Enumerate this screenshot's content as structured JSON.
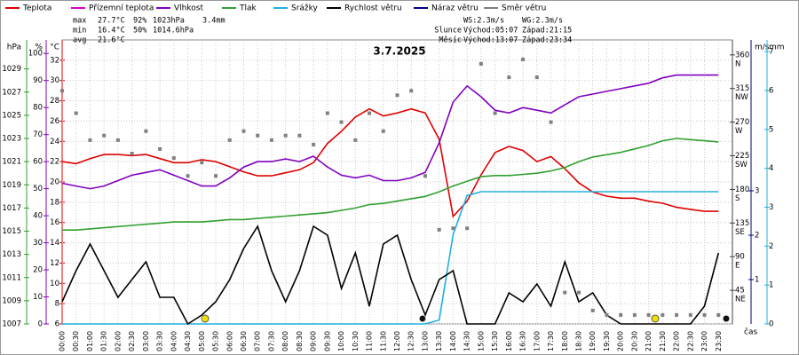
{
  "chart_data": {
    "type": "line",
    "title": "3.7.2025",
    "x": [
      "00:00",
      "00:30",
      "01:00",
      "01:30",
      "02:00",
      "02:30",
      "03:00",
      "03:30",
      "04:00",
      "04:30",
      "05:00",
      "05:30",
      "06:00",
      "06:30",
      "07:00",
      "07:30",
      "08:00",
      "08:30",
      "09:00",
      "09:30",
      "10:00",
      "10:30",
      "11:00",
      "11:30",
      "12:00",
      "12:30",
      "13:00",
      "13:30",
      "14:00",
      "14:30",
      "15:00",
      "15:30",
      "16:00",
      "16:30",
      "17:00",
      "17:30",
      "18:00",
      "18:30",
      "19:00",
      "19:30",
      "20:00",
      "20:30",
      "21:00",
      "21:30",
      "22:00",
      "22:30",
      "23:00",
      "23:30"
    ],
    "x_title": "čas",
    "ylim": [
      6,
      34
    ],
    "yticks": [
      6,
      8,
      10,
      12,
      14,
      16,
      18,
      20,
      22,
      24,
      26,
      28,
      30,
      32
    ],
    "y2lim": [
      0,
      105
    ],
    "y2ticks": [
      0,
      10,
      20,
      30,
      40,
      50,
      60,
      70,
      80,
      90,
      100
    ],
    "y3lim": [
      1007,
      1031.5
    ],
    "y3ticks": [
      1007,
      1009,
      1011,
      1013,
      1015,
      1017,
      1019,
      1021,
      1023,
      1025,
      1027,
      1029
    ],
    "y4lim": [
      0,
      380
    ],
    "y4ticks": [
      45,
      90,
      135,
      180,
      225,
      270,
      315,
      360
    ],
    "y4tick_names": [
      "NE",
      "E",
      "SE",
      "S",
      "SW",
      "W",
      "NW",
      "N"
    ],
    "y5lim": [
      0,
      6.4
    ],
    "y5ticks": [
      1,
      2,
      3
    ],
    "y6lim": [
      0,
      7.3
    ],
    "y6ticks": [
      0,
      1,
      2,
      3,
      4,
      5,
      6,
      7
    ],
    "axis_titles": {
      "y3": "hPa",
      "y2": "%",
      "y": "°C",
      "y5": "m/s",
      "y6": "mm"
    },
    "axis_colors": {
      "y3": "#30a030",
      "y2": "#8000c0",
      "y": "#e00000",
      "y4": "#404040",
      "y5": "#000080",
      "y6": "#20b0e0"
    },
    "grid": true,
    "series": [
      {
        "name": "Teplota",
        "color": "#e00000",
        "axis": "y",
        "values": [
          22.0,
          21.8,
          22.3,
          22.7,
          22.7,
          22.6,
          22.7,
          22.3,
          21.9,
          21.9,
          22.2,
          22.0,
          21.5,
          21.0,
          20.6,
          20.6,
          20.9,
          21.2,
          21.9,
          23.8,
          25.0,
          26.4,
          27.2,
          26.5,
          26.8,
          27.2,
          26.8,
          24.2,
          16.6,
          18.1,
          20.7,
          22.9,
          23.5,
          23.1,
          22.0,
          22.5,
          21.3,
          19.9,
          19.0,
          18.6,
          18.4,
          18.4,
          18.1,
          17.9,
          17.5,
          17.3,
          17.1,
          17.1
        ]
      },
      {
        "name": "Přízemní teplota",
        "color": "#d000d0",
        "axis": "y",
        "values": [
          null,
          null,
          null,
          null,
          null,
          null,
          null,
          null,
          null,
          null,
          null,
          null,
          null,
          null,
          null,
          null,
          null,
          null,
          null,
          null,
          null,
          null,
          null,
          null,
          null,
          null,
          null,
          null,
          null,
          null,
          null,
          null,
          null,
          null,
          null,
          null,
          null,
          null,
          null,
          null,
          null,
          null,
          null,
          null,
          null,
          null,
          null,
          null
        ]
      },
      {
        "name": "Vlhkost",
        "color": "#8000c0",
        "axis": "y2",
        "values": [
          52,
          51,
          50,
          51,
          53,
          55,
          56,
          57,
          55,
          53,
          51,
          51,
          54,
          58,
          60,
          60,
          61,
          60,
          62,
          58,
          55,
          54,
          55,
          53,
          53,
          54,
          56,
          67,
          82,
          88,
          84,
          79,
          78,
          80,
          79,
          78,
          81,
          84,
          85,
          86,
          87,
          88,
          89,
          91,
          92,
          92,
          92,
          92
        ]
      },
      {
        "name": "Tlak",
        "color": "#30a030",
        "axis": "y3",
        "values": [
          1015.1,
          1015.1,
          1015.2,
          1015.3,
          1015.4,
          1015.5,
          1015.6,
          1015.7,
          1015.8,
          1015.8,
          1015.8,
          1015.9,
          1016.0,
          1016.0,
          1016.1,
          1016.2,
          1016.3,
          1016.4,
          1016.5,
          1016.6,
          1016.8,
          1017.0,
          1017.3,
          1017.4,
          1017.6,
          1017.8,
          1018.0,
          1018.4,
          1018.9,
          1019.3,
          1019.7,
          1019.8,
          1019.8,
          1019.9,
          1020.0,
          1020.2,
          1020.5,
          1021.0,
          1021.4,
          1021.6,
          1021.8,
          1022.1,
          1022.4,
          1022.8,
          1023.0,
          1022.9,
          1022.8,
          1022.7
        ]
      },
      {
        "name": "Srážky",
        "color": "#20b0e0",
        "axis": "y6",
        "values": [
          0,
          0,
          0,
          0,
          0,
          0,
          0,
          0,
          0,
          0,
          0,
          0,
          0,
          0,
          0,
          0,
          0,
          0,
          0,
          0,
          0,
          0,
          0,
          0,
          0,
          0,
          0,
          0.1,
          2.3,
          3.3,
          3.4,
          3.4,
          3.4,
          3.4,
          3.4,
          3.4,
          3.4,
          3.4,
          3.4,
          3.4,
          3.4,
          3.4,
          3.4,
          3.4,
          3.4,
          3.4,
          3.4,
          3.4
        ]
      },
      {
        "name": "Rychlost větru",
        "color": "#000000",
        "axis": "y5",
        "values": [
          0.5,
          1.2,
          1.8,
          1.2,
          0.6,
          1.0,
          1.4,
          0.6,
          0.6,
          0,
          0.2,
          0.5,
          1.0,
          1.7,
          2.2,
          1.2,
          0.5,
          1.2,
          2.2,
          2.0,
          0.8,
          1.6,
          0.4,
          1.8,
          2.0,
          1.0,
          0.2,
          1.0,
          1.2,
          0,
          0,
          0,
          0.7,
          0.5,
          0.9,
          0.4,
          1.4,
          0.5,
          0.7,
          0.2,
          0,
          0,
          0,
          0,
          0,
          0,
          0.4,
          1.6
        ]
      },
      {
        "name": "Náraz větru",
        "color": "#000080",
        "axis": "y5",
        "values": [
          null,
          null,
          null,
          null,
          null,
          null,
          null,
          null,
          null,
          null,
          null,
          null,
          null,
          null,
          null,
          null,
          null,
          null,
          null,
          null,
          null,
          null,
          null,
          null,
          null,
          null,
          null,
          null,
          null,
          null,
          null,
          null,
          null,
          null,
          null,
          null,
          null,
          null,
          null,
          null,
          null,
          null,
          null,
          null,
          null,
          null,
          null,
          null
        ]
      },
      {
        "name": "Směr větru",
        "color": "#808080",
        "axis": "y4",
        "style": "points",
        "values": [
          312,
          282,
          246,
          252,
          246,
          228,
          258,
          234,
          222,
          198,
          216,
          198,
          246,
          258,
          252,
          246,
          252,
          252,
          240,
          282,
          270,
          246,
          282,
          258,
          306,
          312,
          198,
          126,
          128,
          128,
          348,
          282,
          330,
          354,
          330,
          270,
          42,
          42,
          18,
          12,
          12,
          12,
          12,
          12,
          12,
          12,
          12,
          12
        ]
      }
    ],
    "stats": [
      {
        "label": "max",
        "items": [
          {
            "text": "27.7°C",
            "color": "#e00000"
          },
          {
            "text": "92%",
            "color": "#8000c0"
          },
          {
            "text": "1023hPa",
            "color": "#000080"
          },
          {
            "text": "3.4mm",
            "color": "#20b0e0"
          }
        ]
      },
      {
        "label": "min",
        "items": [
          {
            "text": "16.4°C",
            "color": "#0000c0"
          },
          {
            "text": "50%",
            "color": "#000080"
          },
          {
            "text": "1014.6hPa",
            "color": "#000080"
          }
        ]
      },
      {
        "label": "avg",
        "items": [
          {
            "text": "21.6°C",
            "color": "#404040"
          }
        ]
      }
    ],
    "info": [
      [
        "",
        "WS:2.3m/s",
        "WG:2.3m/s"
      ],
      [
        "Slunce",
        "Východ:05:07",
        "Západ:21:15"
      ],
      [
        "Měsíc",
        "Východ:13:07",
        "Západ:23:34"
      ]
    ]
  }
}
